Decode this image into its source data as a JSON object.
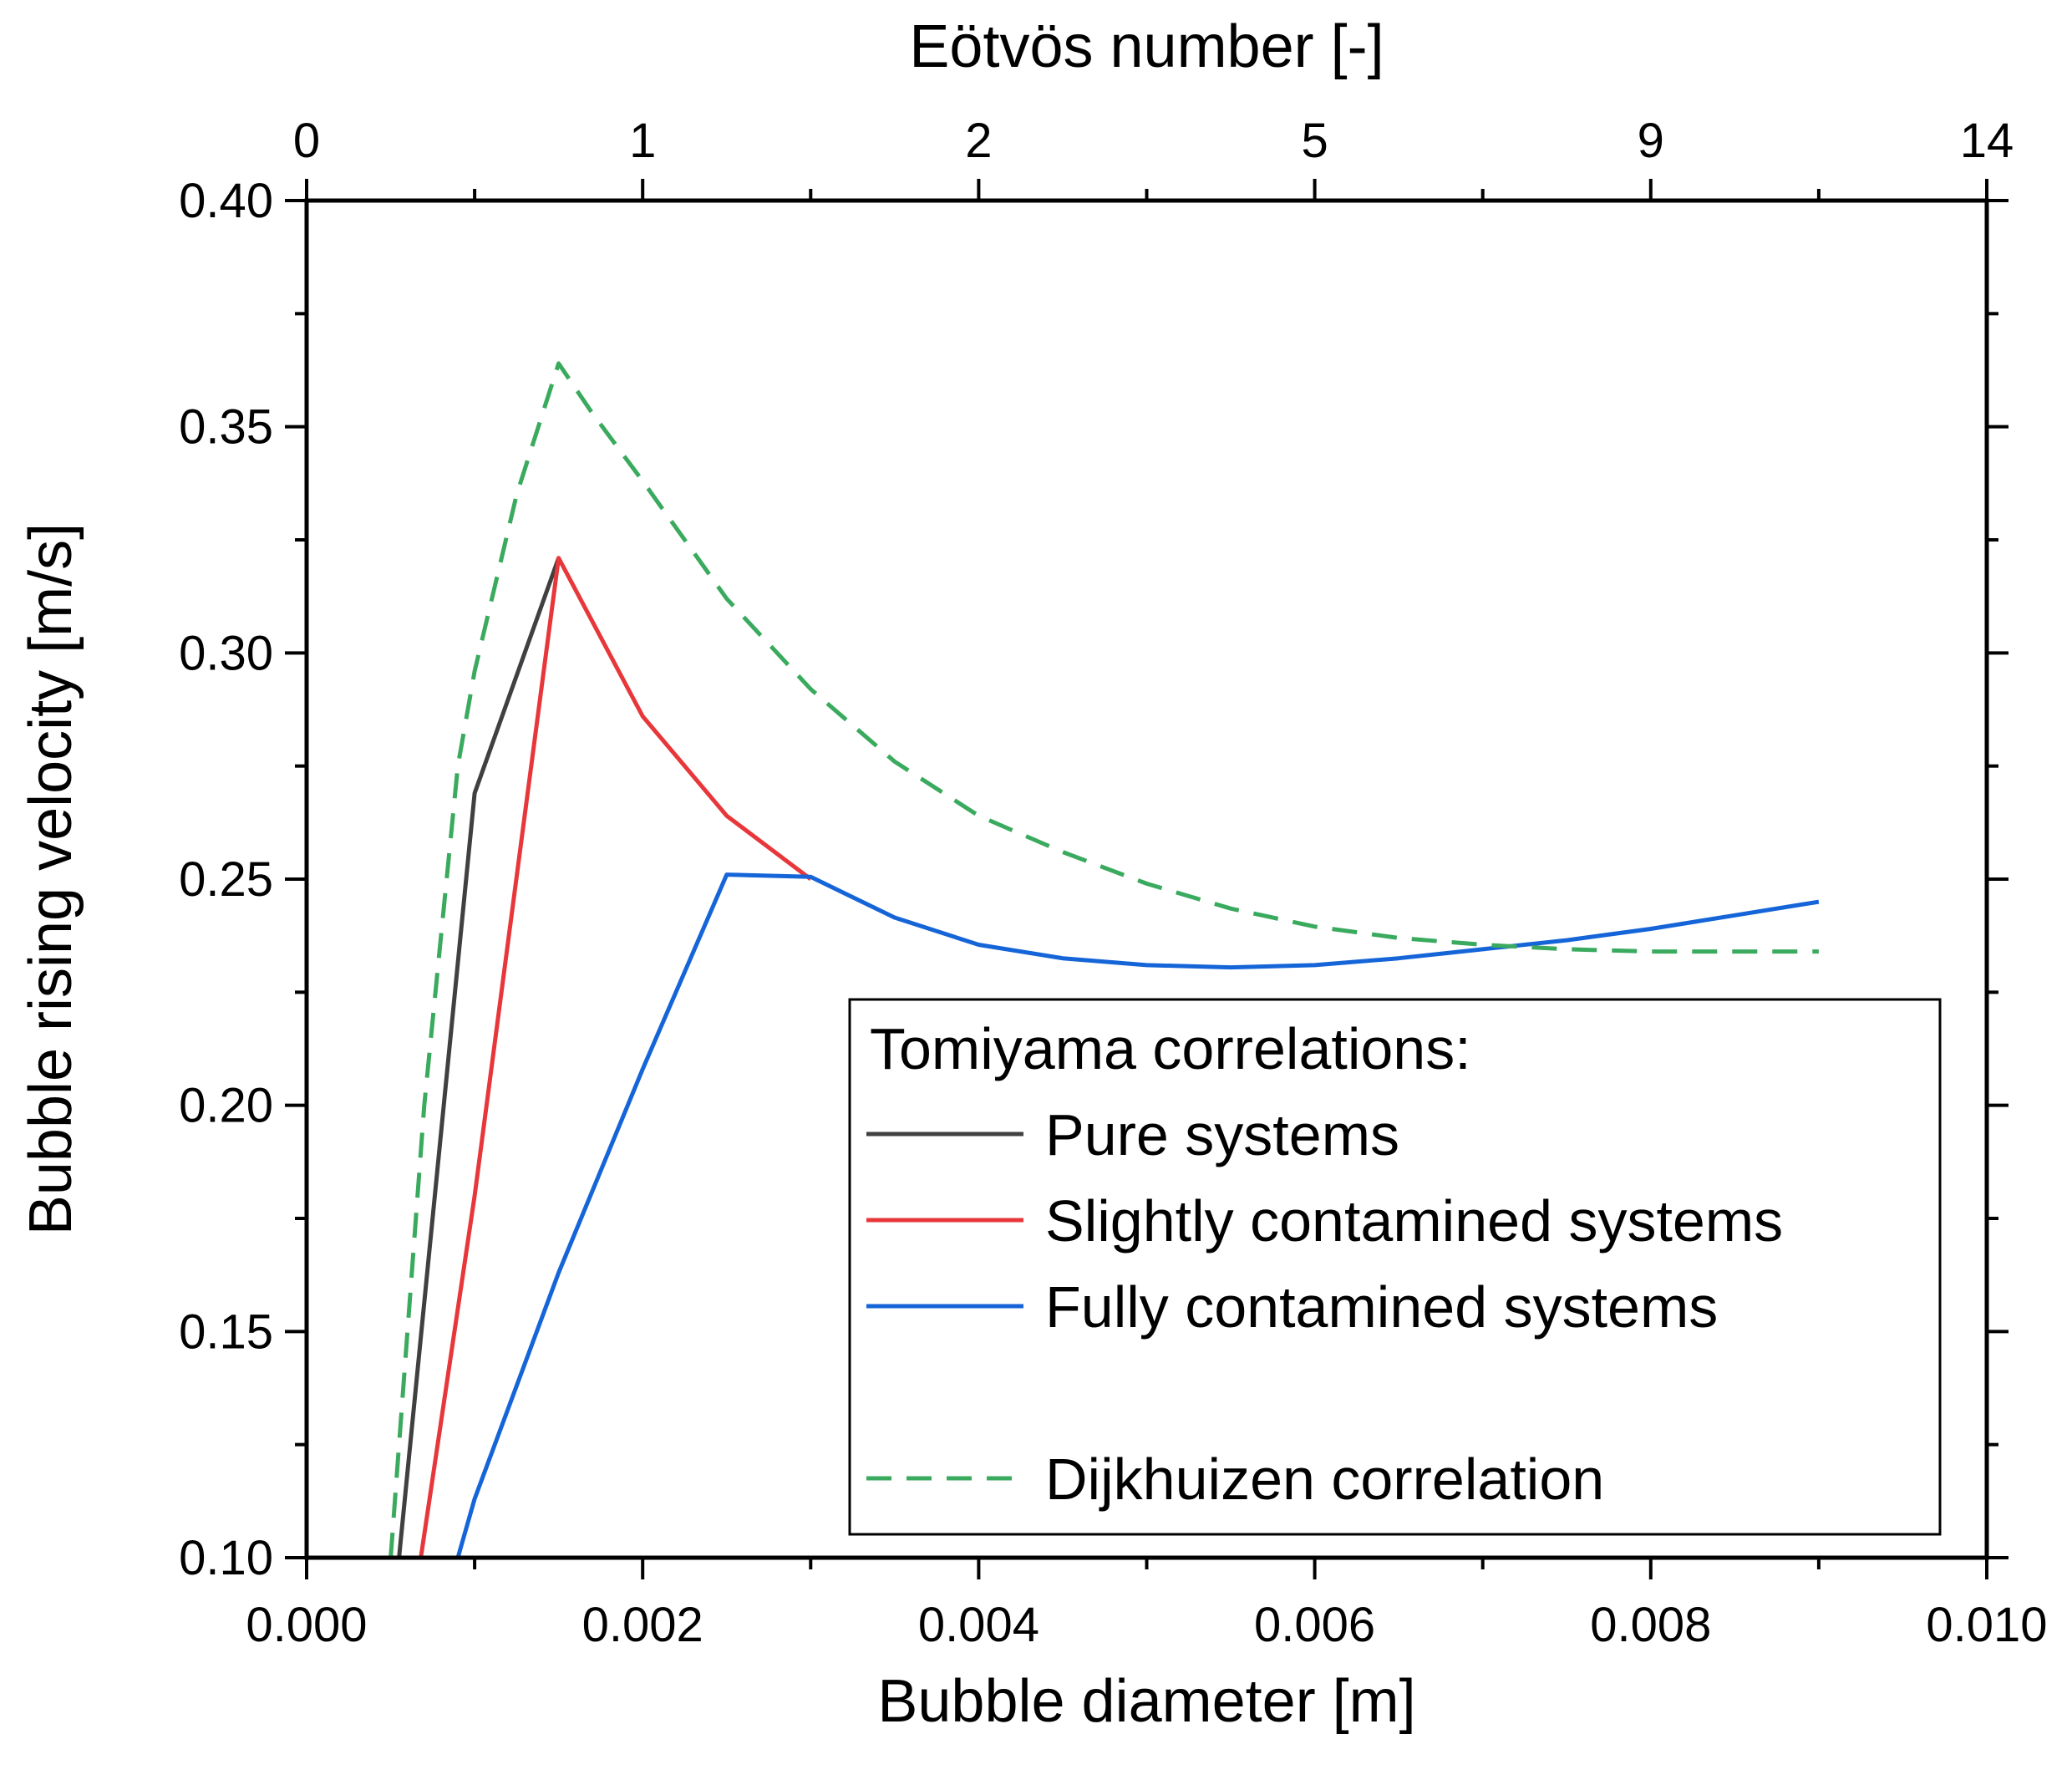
{
  "chart_data": {
    "type": "line",
    "xlabel": "Bubble diameter [m]",
    "ylabel": "Bubble rising velocity [m/s]",
    "x2label": "Eötvös number [-]",
    "xlim": [
      0.0,
      0.01
    ],
    "ylim": [
      0.1,
      0.4
    ],
    "xticks": [
      {
        "value": 0.0,
        "label": "0.000"
      },
      {
        "value": 0.002,
        "label": "0.002"
      },
      {
        "value": 0.004,
        "label": "0.004"
      },
      {
        "value": 0.006,
        "label": "0.006"
      },
      {
        "value": 0.008,
        "label": "0.008"
      },
      {
        "value": 0.01,
        "label": "0.010"
      }
    ],
    "yticks": [
      {
        "value": 0.1,
        "label": "0.10"
      },
      {
        "value": 0.15,
        "label": "0.15"
      },
      {
        "value": 0.2,
        "label": "0.20"
      },
      {
        "value": 0.25,
        "label": "0.25"
      },
      {
        "value": 0.3,
        "label": "0.30"
      },
      {
        "value": 0.35,
        "label": "0.35"
      },
      {
        "value": 0.4,
        "label": "0.40"
      }
    ],
    "x2ticks": [
      {
        "value": 0.0,
        "label": "0"
      },
      {
        "value": 0.002,
        "label": "1"
      },
      {
        "value": 0.004,
        "label": "2"
      },
      {
        "value": 0.006,
        "label": "5"
      },
      {
        "value": 0.008,
        "label": "9"
      },
      {
        "value": 0.01,
        "label": "14"
      }
    ],
    "grid": false,
    "legend": {
      "position": "bottom-right",
      "title": "Tomiyama correlations:"
    },
    "series": [
      {
        "name": "Pure systems",
        "color": "#404040",
        "dash": "solid",
        "legend_slot": 0,
        "points": [
          [
            0.00055,
            0.1
          ],
          [
            0.001,
            0.269
          ],
          [
            0.0015,
            0.321
          ]
        ]
      },
      {
        "name": "Slightly contamined systems",
        "color": "#e8373a",
        "dash": "solid",
        "legend_slot": 1,
        "points": [
          [
            0.00068,
            0.1
          ],
          [
            0.001,
            0.18
          ],
          [
            0.0015,
            0.321
          ],
          [
            0.002,
            0.286
          ],
          [
            0.0025,
            0.264
          ],
          [
            0.003,
            0.25
          ]
        ]
      },
      {
        "name": "Fully contamined systems",
        "color": "#1565d8",
        "dash": "solid",
        "legend_slot": 2,
        "points": [
          [
            0.0009,
            0.1
          ],
          [
            0.001,
            0.113
          ],
          [
            0.0015,
            0.163
          ],
          [
            0.002,
            0.208
          ],
          [
            0.0025,
            0.251
          ],
          [
            0.003,
            0.2505
          ],
          [
            0.0035,
            0.2415
          ],
          [
            0.004,
            0.2355
          ],
          [
            0.0045,
            0.2325
          ],
          [
            0.005,
            0.231
          ],
          [
            0.0055,
            0.2305
          ],
          [
            0.006,
            0.231
          ],
          [
            0.0065,
            0.2325
          ],
          [
            0.007,
            0.2345
          ],
          [
            0.0075,
            0.2365
          ],
          [
            0.008,
            0.239
          ],
          [
            0.0085,
            0.242
          ],
          [
            0.009,
            0.245
          ]
        ]
      },
      {
        "name": "Dijkhuizen correlation",
        "color": "#3aaa5e",
        "dash": "dashed",
        "legend_slot": 4,
        "points": [
          [
            0.0005,
            0.1
          ],
          [
            0.0007,
            0.2
          ],
          [
            0.0009,
            0.275
          ],
          [
            0.001,
            0.296
          ],
          [
            0.00125,
            0.335
          ],
          [
            0.0015,
            0.364
          ],
          [
            0.0017,
            0.353
          ],
          [
            0.002,
            0.338
          ],
          [
            0.0025,
            0.312
          ],
          [
            0.003,
            0.292
          ],
          [
            0.0035,
            0.276
          ],
          [
            0.004,
            0.264
          ],
          [
            0.0045,
            0.256
          ],
          [
            0.005,
            0.249
          ],
          [
            0.0055,
            0.2435
          ],
          [
            0.006,
            0.2395
          ],
          [
            0.0065,
            0.237
          ],
          [
            0.007,
            0.2355
          ],
          [
            0.0075,
            0.2345
          ],
          [
            0.008,
            0.234
          ],
          [
            0.0085,
            0.234
          ],
          [
            0.009,
            0.234
          ]
        ]
      }
    ]
  }
}
